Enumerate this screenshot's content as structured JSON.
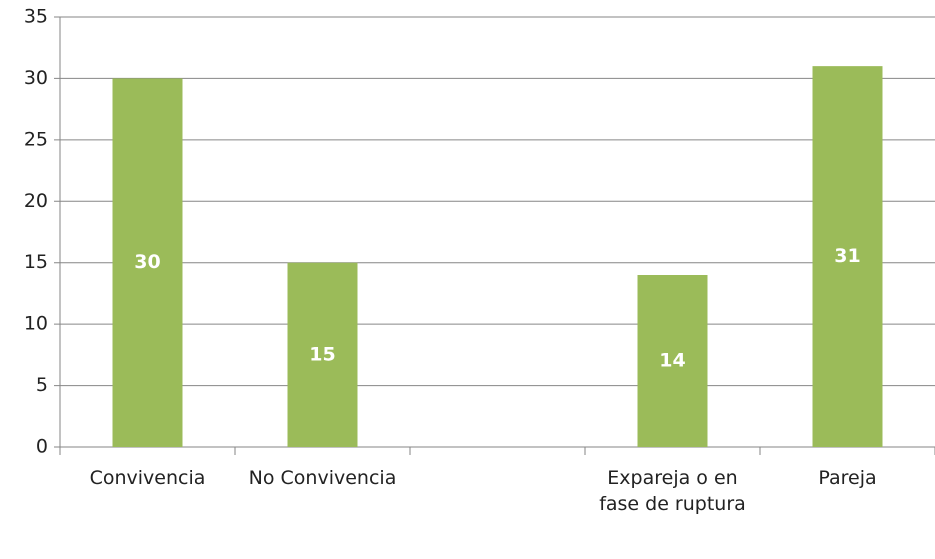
{
  "chart_data": {
    "type": "bar",
    "categories": [
      "Convivencia",
      "No Convivencia",
      null,
      "Expareja o en fase de ruptura",
      "Pareja"
    ],
    "values": [
      30,
      15,
      null,
      14,
      31
    ],
    "color": "#9bbb59",
    "ylim": [
      0,
      35
    ],
    "yticks": [
      0,
      5,
      10,
      15,
      20,
      25,
      30,
      35
    ],
    "grid": true
  }
}
